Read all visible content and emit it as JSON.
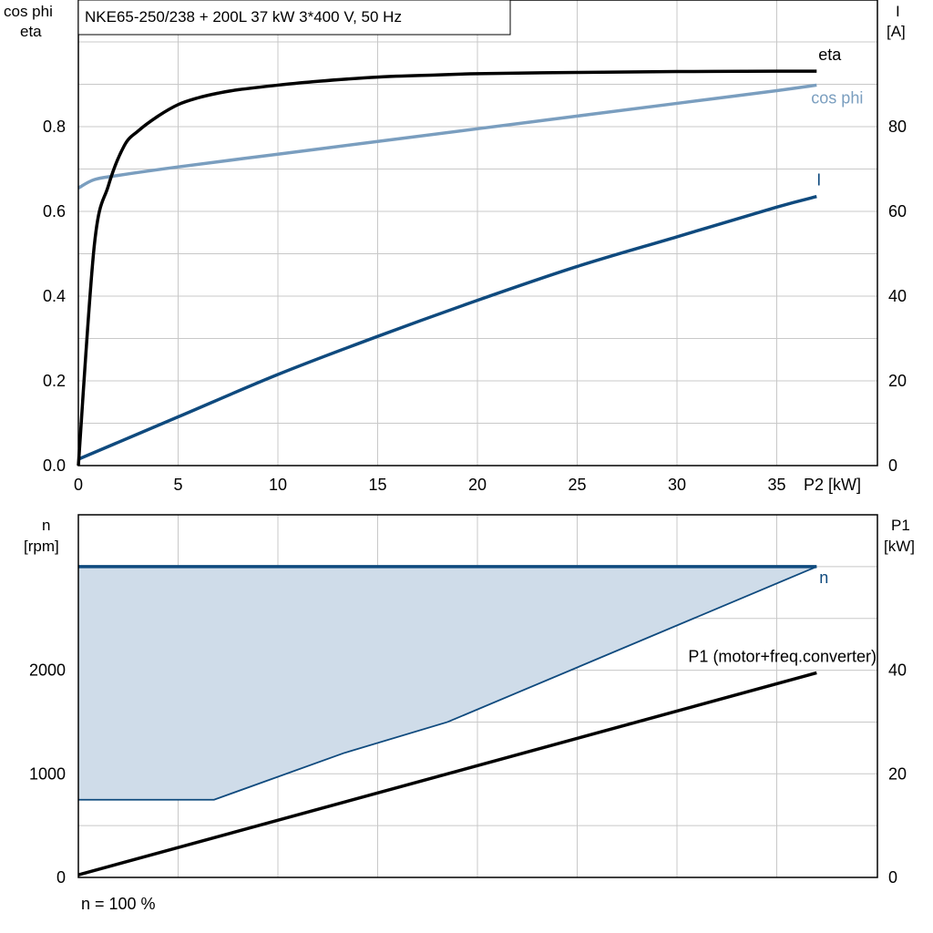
{
  "colors": {
    "eta": "#000000",
    "cosphi": "#7a9ebf",
    "current": "#0f4a7e",
    "speed": "#0f4a7e",
    "speed_fill": "#cfdce9",
    "p1": "#000000",
    "grid": "#c8c8c8"
  },
  "title": "NKE65-250/238 + 200L   37 kW   3*400 V, 50 Hz",
  "footer": "n = 100 %",
  "chart_data": [
    {
      "type": "line",
      "title": "NKE65-250/238 + 200L   37 kW   3*400 V, 50 Hz",
      "xlabel": "P2 [kW]",
      "ylabel": "cos phi\neta",
      "y2label": "I\n[A]",
      "xlim": [
        0,
        40
      ],
      "ylim": [
        0,
        1.0
      ],
      "y2lim": [
        0,
        100
      ],
      "xticks": [
        0,
        5,
        10,
        15,
        20,
        25,
        30,
        35
      ],
      "yticks": [
        0.0,
        0.2,
        0.4,
        0.6,
        0.8
      ],
      "y2ticks": [
        0,
        20,
        40,
        60,
        80
      ],
      "grid": true,
      "series": [
        {
          "name": "eta",
          "axis": "left",
          "x": [
            0,
            0.8,
            1.5,
            2.3,
            3,
            4,
            5,
            6,
            7,
            8,
            10,
            12,
            15,
            18,
            20,
            25,
            30,
            35,
            37
          ],
          "y": [
            0.0,
            0.52,
            0.66,
            0.755,
            0.79,
            0.825,
            0.852,
            0.868,
            0.879,
            0.887,
            0.898,
            0.907,
            0.917,
            0.922,
            0.925,
            0.928,
            0.93,
            0.931,
            0.931
          ]
        },
        {
          "name": "cos phi",
          "axis": "left",
          "x": [
            0,
            0.8,
            2,
            5,
            10,
            15,
            20,
            25,
            30,
            35,
            37
          ],
          "y": [
            0.655,
            0.675,
            0.685,
            0.705,
            0.735,
            0.765,
            0.795,
            0.825,
            0.855,
            0.885,
            0.898
          ]
        },
        {
          "name": "I",
          "axis": "right",
          "x": [
            0,
            5,
            10,
            15,
            20,
            25,
            30,
            35,
            37
          ],
          "y": [
            1.5,
            11.5,
            21.5,
            30.5,
            39,
            47,
            54,
            61,
            63.5
          ]
        }
      ]
    },
    {
      "type": "area",
      "xlabel": "",
      "ylabel": "n\n[rpm]",
      "y2label": "P1\n[kW]",
      "xlim": [
        0,
        40
      ],
      "ylim": [
        0,
        3500
      ],
      "y2lim": [
        0,
        70
      ],
      "yticks": [
        0,
        1000,
        2000,
        3000
      ],
      "ytick_labels": [
        "0",
        "1000",
        "2000",
        ""
      ],
      "y2ticks": [
        0,
        20,
        40,
        60
      ],
      "y2tick_labels": [
        "0",
        "20",
        "40",
        ""
      ],
      "grid": true,
      "series": [
        {
          "name": "n",
          "axis": "left",
          "role": "upper",
          "x": [
            0,
            37
          ],
          "y": [
            3000,
            3000
          ]
        },
        {
          "axis": "left",
          "role": "lower",
          "x": [
            0,
            6.8,
            13.3,
            18.5,
            37
          ],
          "y": [
            750,
            750,
            1200,
            1500,
            3000
          ]
        },
        {
          "name": "P1 (motor+freq.converter)",
          "axis": "right",
          "x": [
            0,
            37
          ],
          "y": [
            0.5,
            39.5
          ]
        }
      ]
    }
  ]
}
